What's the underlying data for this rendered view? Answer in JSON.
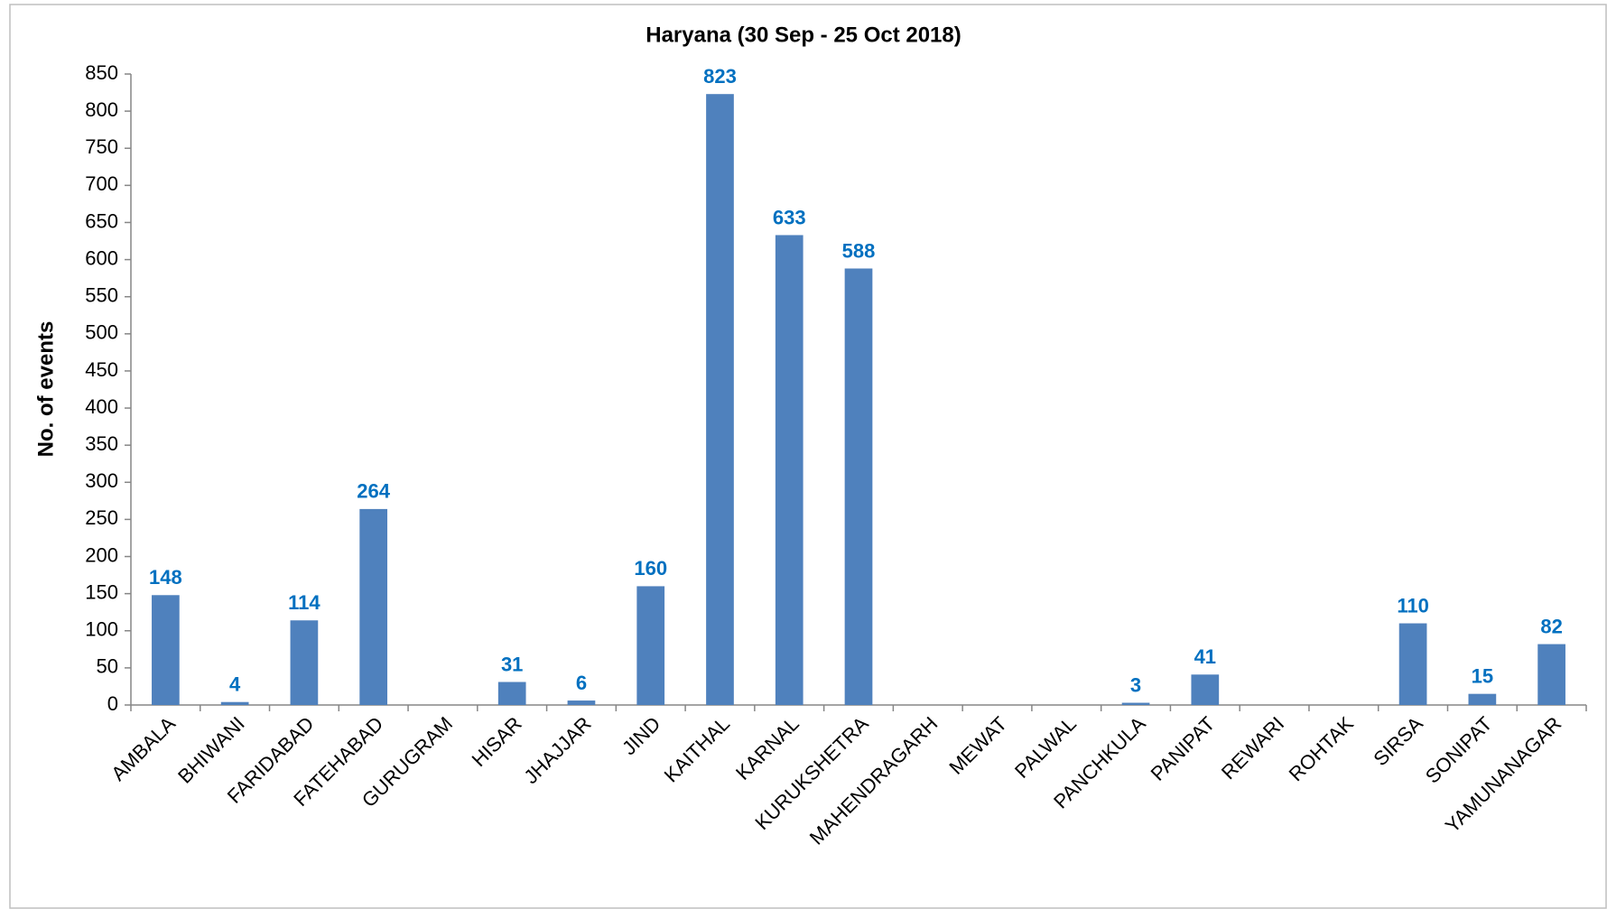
{
  "chart_data": {
    "type": "bar",
    "title": "Haryana (30 Sep - 25 Oct 2018)",
    "y_label": "No. of events",
    "categories": [
      "AMBALA",
      "BHIWANI",
      "FARIDABAD",
      "FATEHABAD",
      "GURUGRAM",
      "HISAR",
      "JHAJJAR",
      "JIND",
      "KAITHAL",
      "KARNAL",
      "KURUKSHETRA",
      "MAHENDRAGARH",
      "MEWAT",
      "PALWAL",
      "PANCHKULA",
      "PANIPAT",
      "REWARI",
      "ROHTAK",
      "SIRSA",
      "SONIPAT",
      "YAMUNANAGAR"
    ],
    "values": [
      148,
      4,
      114,
      264,
      null,
      31,
      6,
      160,
      823,
      633,
      588,
      null,
      null,
      null,
      3,
      41,
      null,
      null,
      110,
      15,
      82
    ],
    "color": "#4f81bd",
    "label_color": "#0070c0",
    "ylim": [
      0,
      850
    ],
    "yticks": [
      0,
      50,
      100,
      150,
      200,
      250,
      300,
      350,
      400,
      450,
      500,
      550,
      600,
      650,
      700,
      750,
      800,
      850
    ],
    "grid": false
  }
}
